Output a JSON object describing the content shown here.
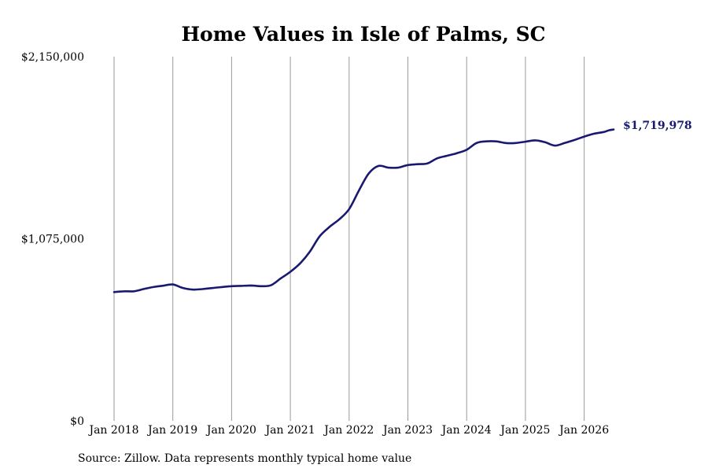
{
  "chart_data": {
    "type": "line",
    "title": "Home Values in Isle of Palms, SC",
    "xlabel": "",
    "ylabel": "",
    "x_ticks": [
      "Jan 2018",
      "Jan 2019",
      "Jan 2020",
      "Jan 2021",
      "Jan 2022",
      "Jan 2023",
      "Jan 2024",
      "Jan 2025",
      "Jan 2026"
    ],
    "y_ticks": [
      "$0",
      "$1,075,000",
      "$2,150,000"
    ],
    "ylim": [
      0,
      2150000
    ],
    "xlim": [
      "2018-01",
      "2026-07"
    ],
    "grid": "vertical",
    "legend": "none",
    "line_color": "#191970",
    "end_label": "$1,719,978",
    "series": [
      {
        "x": [
          "2018-01",
          "2018-03",
          "2018-05",
          "2018-07",
          "2018-09",
          "2018-11",
          "2019-01",
          "2019-03",
          "2019-05",
          "2019-07",
          "2019-09",
          "2019-11",
          "2020-01",
          "2020-03",
          "2020-05",
          "2020-07",
          "2020-09",
          "2020-11",
          "2021-01",
          "2021-03",
          "2021-05",
          "2021-07",
          "2021-09",
          "2021-11",
          "2022-01",
          "2022-03",
          "2022-05",
          "2022-07",
          "2022-09",
          "2022-11",
          "2023-01",
          "2023-03",
          "2023-05",
          "2023-07",
          "2023-09",
          "2023-11",
          "2024-01",
          "2024-03",
          "2024-05",
          "2024-07",
          "2024-09",
          "2024-11",
          "2025-01",
          "2025-03",
          "2025-05",
          "2025-07",
          "2025-09",
          "2025-11",
          "2026-01",
          "2026-03",
          "2026-05",
          "2026-06",
          "2026-07"
        ],
        "values": [
          760000,
          765000,
          765000,
          778000,
          790000,
          798000,
          805000,
          785000,
          775000,
          778000,
          784000,
          790000,
          795000,
          797000,
          799000,
          795000,
          800000,
          840000,
          880000,
          930000,
          1000000,
          1090000,
          1145000,
          1190000,
          1250000,
          1360000,
          1460000,
          1505000,
          1495000,
          1495000,
          1510000,
          1515000,
          1520000,
          1550000,
          1565000,
          1580000,
          1600000,
          1640000,
          1650000,
          1650000,
          1640000,
          1640000,
          1648000,
          1656000,
          1645000,
          1625000,
          1640000,
          1658000,
          1678000,
          1695000,
          1705000,
          1715000,
          1719978
        ]
      }
    ]
  },
  "source_note": "Source: Zillow. Data represents monthly typical home value"
}
